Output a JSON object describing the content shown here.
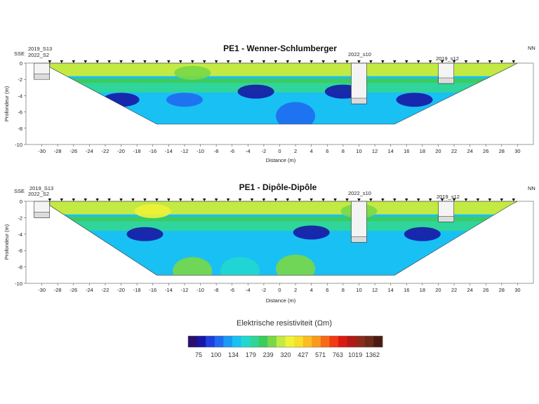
{
  "chart_data": [
    {
      "type": "heatmap",
      "title": "PE1 - Wenner-Schlumberger",
      "xlabel": "Distance (m)",
      "ylabel": "Profondeur (m)",
      "xlim": [
        -32,
        32
      ],
      "ylim": [
        -10,
        0
      ],
      "x_ticks": [
        -30,
        -28,
        -26,
        -24,
        -22,
        -20,
        -18,
        -16,
        -14,
        -12,
        -10,
        -8,
        -6,
        -4,
        -2,
        0,
        2,
        4,
        6,
        8,
        10,
        12,
        14,
        16,
        18,
        20,
        22,
        24,
        26,
        28,
        30
      ],
      "y_ticks": [
        0,
        -2,
        -4,
        -6,
        -8,
        -10
      ],
      "section_bottom_depth": -7.5,
      "left_label": "SSE",
      "right_label": "NN",
      "boreholes": [
        {
          "labels": [
            "2019_S13",
            "2022_S2"
          ],
          "x": -30,
          "depth": -2
        },
        {
          "labels": [
            "2022_s10"
          ],
          "x": 10,
          "depth": -5
        },
        {
          "labels": [
            "2019_s12"
          ],
          "x": 21,
          "depth": -2.5
        }
      ],
      "anomalies": [
        {
          "x": -11,
          "z": -1.2,
          "value": 320
        },
        {
          "x": -20,
          "z": -4.5,
          "value": 75
        },
        {
          "x": -12,
          "z": -4.5,
          "value": 100
        },
        {
          "x": -3,
          "z": -3.5,
          "value": 75
        },
        {
          "x": 8,
          "z": -3.5,
          "value": 75
        },
        {
          "x": 17,
          "z": -4.5,
          "value": 75
        },
        {
          "x": 2,
          "z": -6.5,
          "value": 100
        }
      ]
    },
    {
      "type": "heatmap",
      "title": "PE1 - Dipôle-Dipôle",
      "xlabel": "Distance (m)",
      "ylabel": "Profondeur (m)",
      "xlim": [
        -32,
        32
      ],
      "ylim": [
        -10,
        0
      ],
      "x_ticks": [
        -30,
        -28,
        -26,
        -24,
        -22,
        -20,
        -18,
        -16,
        -14,
        -12,
        -10,
        -8,
        -6,
        -4,
        -2,
        0,
        2,
        4,
        6,
        8,
        10,
        12,
        14,
        16,
        18,
        20,
        22,
        24,
        26,
        28,
        30
      ],
      "y_ticks": [
        0,
        -2,
        -4,
        -6,
        -8,
        -10
      ],
      "section_bottom_depth": -9,
      "left_label": "SSE",
      "right_label": "NN",
      "boreholes": [
        {
          "labels": [
            "2019_S13",
            "2022_S2"
          ],
          "x": -30,
          "depth": -2
        },
        {
          "labels": [
            "2022_s10"
          ],
          "x": 10,
          "depth": -5
        },
        {
          "labels": [
            "2019_s12"
          ],
          "x": 21,
          "depth": -2.5
        }
      ],
      "anomalies": [
        {
          "x": -16,
          "z": -1.2,
          "value": 427
        },
        {
          "x": 10,
          "z": -1.2,
          "value": 320
        },
        {
          "x": -17,
          "z": -4,
          "value": 75
        },
        {
          "x": 4,
          "z": -3.8,
          "value": 75
        },
        {
          "x": 18,
          "z": -4,
          "value": 75
        },
        {
          "x": -11,
          "z": -8.5,
          "value": 320
        },
        {
          "x": 2,
          "z": -8.2,
          "value": 320
        },
        {
          "x": -5,
          "z": -8.5,
          "value": 179
        }
      ]
    }
  ],
  "colorbar": {
    "title": "Elektrische resistiviteit (Ωm)",
    "tick_labels": [
      "75",
      "100",
      "134",
      "179",
      "239",
      "320",
      "427",
      "571",
      "763",
      "1019",
      "1362"
    ],
    "colors": [
      "#2a0f6e",
      "#1717a6",
      "#1e3fe0",
      "#1f6bf0",
      "#1a9af5",
      "#19c0f3",
      "#21d8d0",
      "#2fd59a",
      "#3ccc5c",
      "#79d847",
      "#c2ea43",
      "#f0f235",
      "#f8de2a",
      "#fbbd22",
      "#fa9a1c",
      "#f76b16",
      "#f23a13",
      "#db1a14",
      "#b31a16",
      "#8e2a1c",
      "#6b2a1a",
      "#4a1b12"
    ],
    "values": [
      75,
      100,
      134,
      179,
      239,
      320,
      427,
      571,
      763,
      1019,
      1362
    ]
  }
}
